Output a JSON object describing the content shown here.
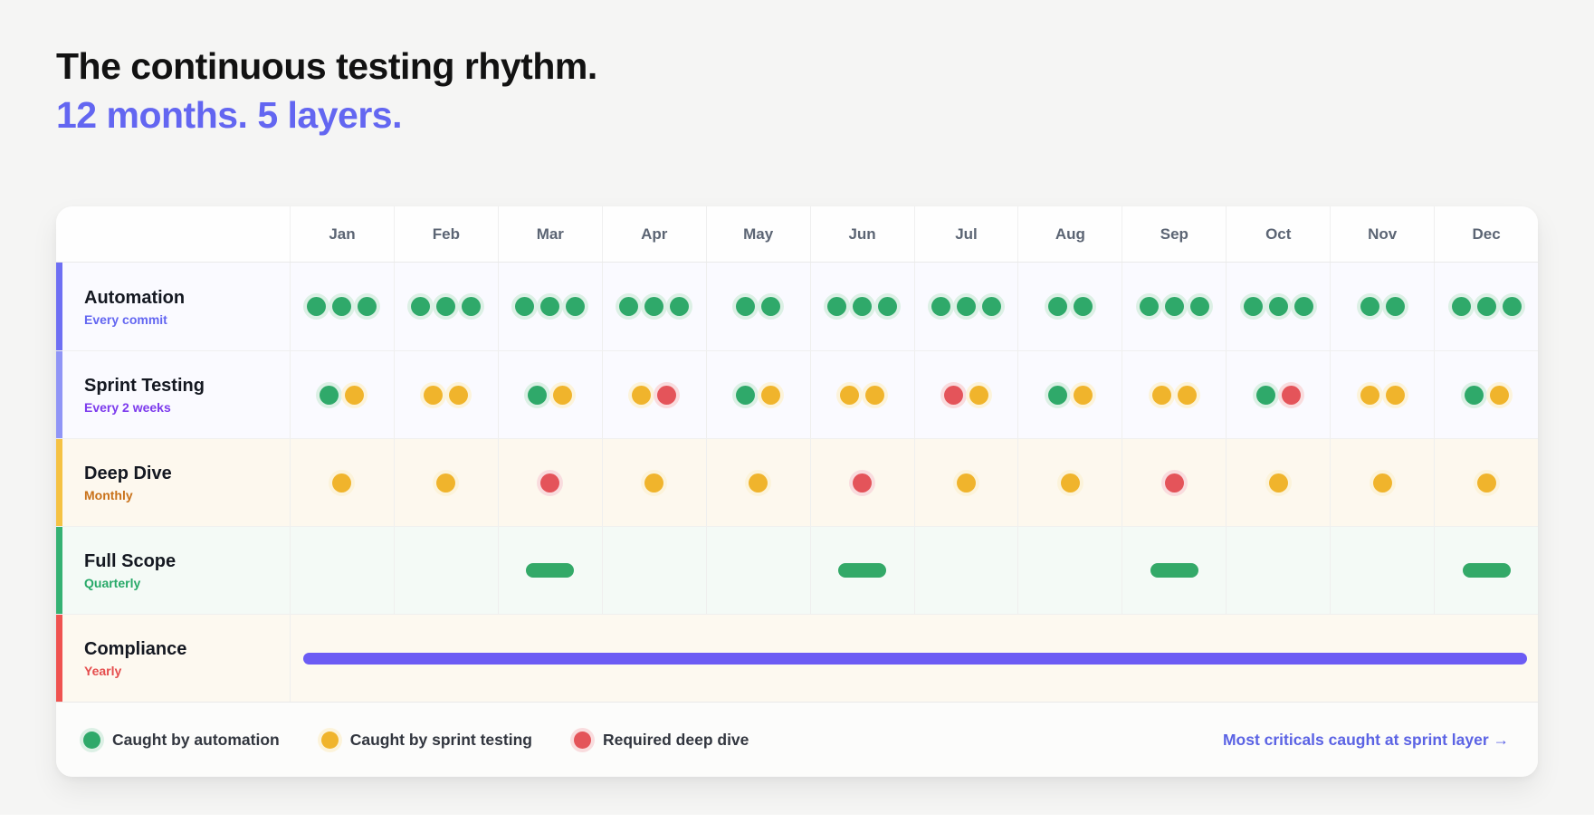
{
  "page": {
    "title": "The continuous testing rhythm.",
    "subtitle": "12 months. 5 layers."
  },
  "table": {
    "months": [
      "Jan",
      "Feb",
      "Mar",
      "Apr",
      "May",
      "Jun",
      "Jul",
      "Aug",
      "Sep",
      "Oct",
      "Nov",
      "Dec"
    ],
    "rows": [
      {
        "id": "automation",
        "label": "Automation",
        "cadence": "Every commit",
        "cadence_color": "#6366f1",
        "accent_color": "#6e6ff3",
        "row_bg": "#fafaff",
        "type": "dots",
        "cells": [
          [
            "g",
            "g",
            "g"
          ],
          [
            "g",
            "g",
            "g"
          ],
          [
            "g",
            "g",
            "g"
          ],
          [
            "g",
            "g",
            "g"
          ],
          [
            "g",
            "g"
          ],
          [
            "g",
            "g",
            "g"
          ],
          [
            "g",
            "g",
            "g"
          ],
          [
            "g",
            "g"
          ],
          [
            "g",
            "g",
            "g"
          ],
          [
            "g",
            "g",
            "g"
          ],
          [
            "g",
            "g"
          ],
          [
            "g",
            "g",
            "g"
          ]
        ]
      },
      {
        "id": "sprint-testing",
        "label": "Sprint Testing",
        "cadence": "Every 2 weeks",
        "cadence_color": "#7c3aed",
        "accent_color": "#9095f6",
        "row_bg": "#fafaff",
        "type": "dots",
        "cells": [
          [
            "g",
            "y"
          ],
          [
            "y",
            "y"
          ],
          [
            "g",
            "y"
          ],
          [
            "y",
            "r"
          ],
          [
            "g",
            "y"
          ],
          [
            "y",
            "y"
          ],
          [
            "r",
            "y"
          ],
          [
            "g",
            "y"
          ],
          [
            "y",
            "y"
          ],
          [
            "g",
            "r"
          ],
          [
            "y",
            "y"
          ],
          [
            "g",
            "y"
          ]
        ]
      },
      {
        "id": "deep-dive",
        "label": "Deep Dive",
        "cadence": "Monthly",
        "cadence_color": "#c9721a",
        "accent_color": "#f5c243",
        "row_bg": "#fdf8ee",
        "type": "dots",
        "cells": [
          [
            "y"
          ],
          [
            "y"
          ],
          [
            "r"
          ],
          [
            "y"
          ],
          [
            "y"
          ],
          [
            "r"
          ],
          [
            "y"
          ],
          [
            "y"
          ],
          [
            "r"
          ],
          [
            "y"
          ],
          [
            "y"
          ],
          [
            "y"
          ]
        ]
      },
      {
        "id": "full-scope",
        "label": "Full Scope",
        "cadence": "Quarterly",
        "cadence_color": "#27a968",
        "accent_color": "#35b173",
        "row_bg": "#f4faf6",
        "type": "quarter_bars",
        "bar_color": "#33a968",
        "cells": [
          false,
          false,
          true,
          false,
          false,
          true,
          false,
          false,
          true,
          false,
          false,
          true
        ]
      },
      {
        "id": "compliance",
        "label": "Compliance",
        "cadence": "Yearly",
        "cadence_color": "#e54d4d",
        "accent_color": "#ef5350",
        "row_bg": "#fdf9f0",
        "type": "year_bar",
        "bar_color": "#6c5cf4"
      }
    ]
  },
  "markers": {
    "g": {
      "name": "green",
      "color": "#2fa96a",
      "halo": "#dcf0e5"
    },
    "y": {
      "name": "yellow",
      "color": "#f0b42c",
      "halo": "#fcf3da"
    },
    "r": {
      "name": "red",
      "color": "#e4545a",
      "halo": "#f9dcde"
    }
  },
  "legend": {
    "items": [
      {
        "marker": "g",
        "label": "Caught by automation"
      },
      {
        "marker": "y",
        "label": "Caught by sprint testing"
      },
      {
        "marker": "r",
        "label": "Required deep dive"
      }
    ],
    "footnote": "Most criticals caught at sprint layer →"
  },
  "chart_data": {
    "type": "table",
    "title": "The continuous testing rhythm. 12 months. 5 layers.",
    "columns": [
      "Jan",
      "Feb",
      "Mar",
      "Apr",
      "May",
      "Jun",
      "Jul",
      "Aug",
      "Sep",
      "Oct",
      "Nov",
      "Dec"
    ],
    "series": [
      {
        "name": "Automation (Every commit)",
        "values": [
          "GGG",
          "GGG",
          "GGG",
          "GGG",
          "GG",
          "GGG",
          "GGG",
          "GG",
          "GGG",
          "GGG",
          "GG",
          "GGG"
        ]
      },
      {
        "name": "Sprint Testing (Every 2 weeks)",
        "values": [
          "GY",
          "YY",
          "GY",
          "YR",
          "GY",
          "YY",
          "RY",
          "GY",
          "YY",
          "GR",
          "YY",
          "GY"
        ]
      },
      {
        "name": "Deep Dive (Monthly)",
        "values": [
          "Y",
          "Y",
          "R",
          "Y",
          "Y",
          "R",
          "Y",
          "Y",
          "R",
          "Y",
          "Y",
          "Y"
        ]
      },
      {
        "name": "Full Scope (Quarterly)",
        "values": [
          "",
          "",
          "bar",
          "",
          "",
          "bar",
          "",
          "",
          "bar",
          "",
          "",
          "bar"
        ]
      },
      {
        "name": "Compliance (Yearly)",
        "values": [
          "continuous bar Jan–Dec"
        ]
      }
    ],
    "legend_note": "G = caught by automation (green), Y = caught by sprint testing (yellow), R = required deep dive (red)"
  }
}
